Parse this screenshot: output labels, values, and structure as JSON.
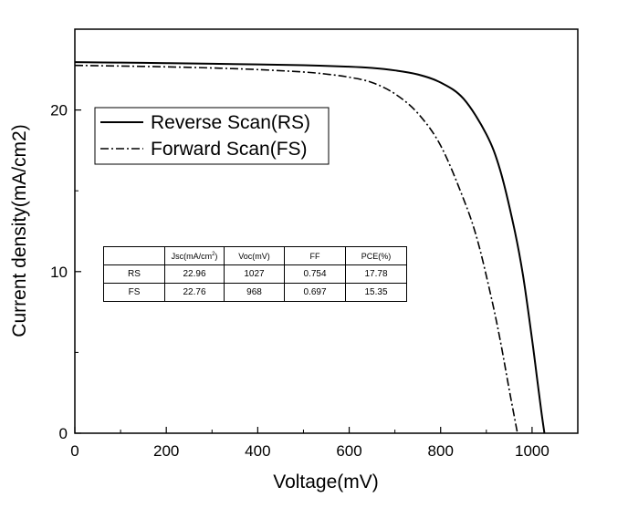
{
  "chart_data": {
    "type": "line",
    "title": "",
    "xlabel": "Voltage(mV)",
    "ylabel": "Current density(mA/cm2)",
    "xlim": [
      0,
      1100
    ],
    "ylim": [
      0,
      25
    ],
    "xticks": [
      0,
      200,
      400,
      600,
      800,
      1000
    ],
    "yticks": [
      0,
      10,
      20
    ],
    "grid": false,
    "legend_position": "top-left",
    "series": [
      {
        "name": "Reverse Scan(RS)",
        "line_style": "solid",
        "color": "#000000",
        "x": [
          0,
          100,
          200,
          300,
          400,
          500,
          600,
          650,
          700,
          750,
          800,
          850,
          900,
          930,
          960,
          980,
          1000,
          1010,
          1020,
          1027
        ],
        "y": [
          22.96,
          22.93,
          22.9,
          22.86,
          22.82,
          22.77,
          22.68,
          22.6,
          22.45,
          22.2,
          21.7,
          20.7,
          18.5,
          16.3,
          12.8,
          9.8,
          5.8,
          3.6,
          1.4,
          0
        ]
      },
      {
        "name": "Forward Scan(FS)",
        "line_style": "dash-dot",
        "color": "#000000",
        "x": [
          0,
          100,
          200,
          300,
          400,
          500,
          550,
          600,
          650,
          700,
          750,
          800,
          850,
          880,
          910,
          930,
          950,
          960,
          968
        ],
        "y": [
          22.76,
          22.72,
          22.67,
          22.6,
          22.5,
          22.35,
          22.22,
          22.03,
          21.7,
          21.0,
          19.8,
          17.8,
          14.5,
          12.0,
          8.5,
          5.8,
          2.7,
          1.2,
          0
        ]
      }
    ]
  },
  "table": {
    "headers": [
      "",
      "Jsc(mA/cm2)",
      "Voc(mV)",
      "FF",
      "PCE(%)"
    ],
    "jsc_header_base": "Jsc(mA/cm",
    "jsc_header_sup": "2",
    "jsc_header_end": ")",
    "rows": [
      [
        "RS",
        "22.96",
        "1027",
        "0.754",
        "17.78"
      ],
      [
        "FS",
        "22.76",
        "968",
        "0.697",
        "15.35"
      ]
    ]
  }
}
